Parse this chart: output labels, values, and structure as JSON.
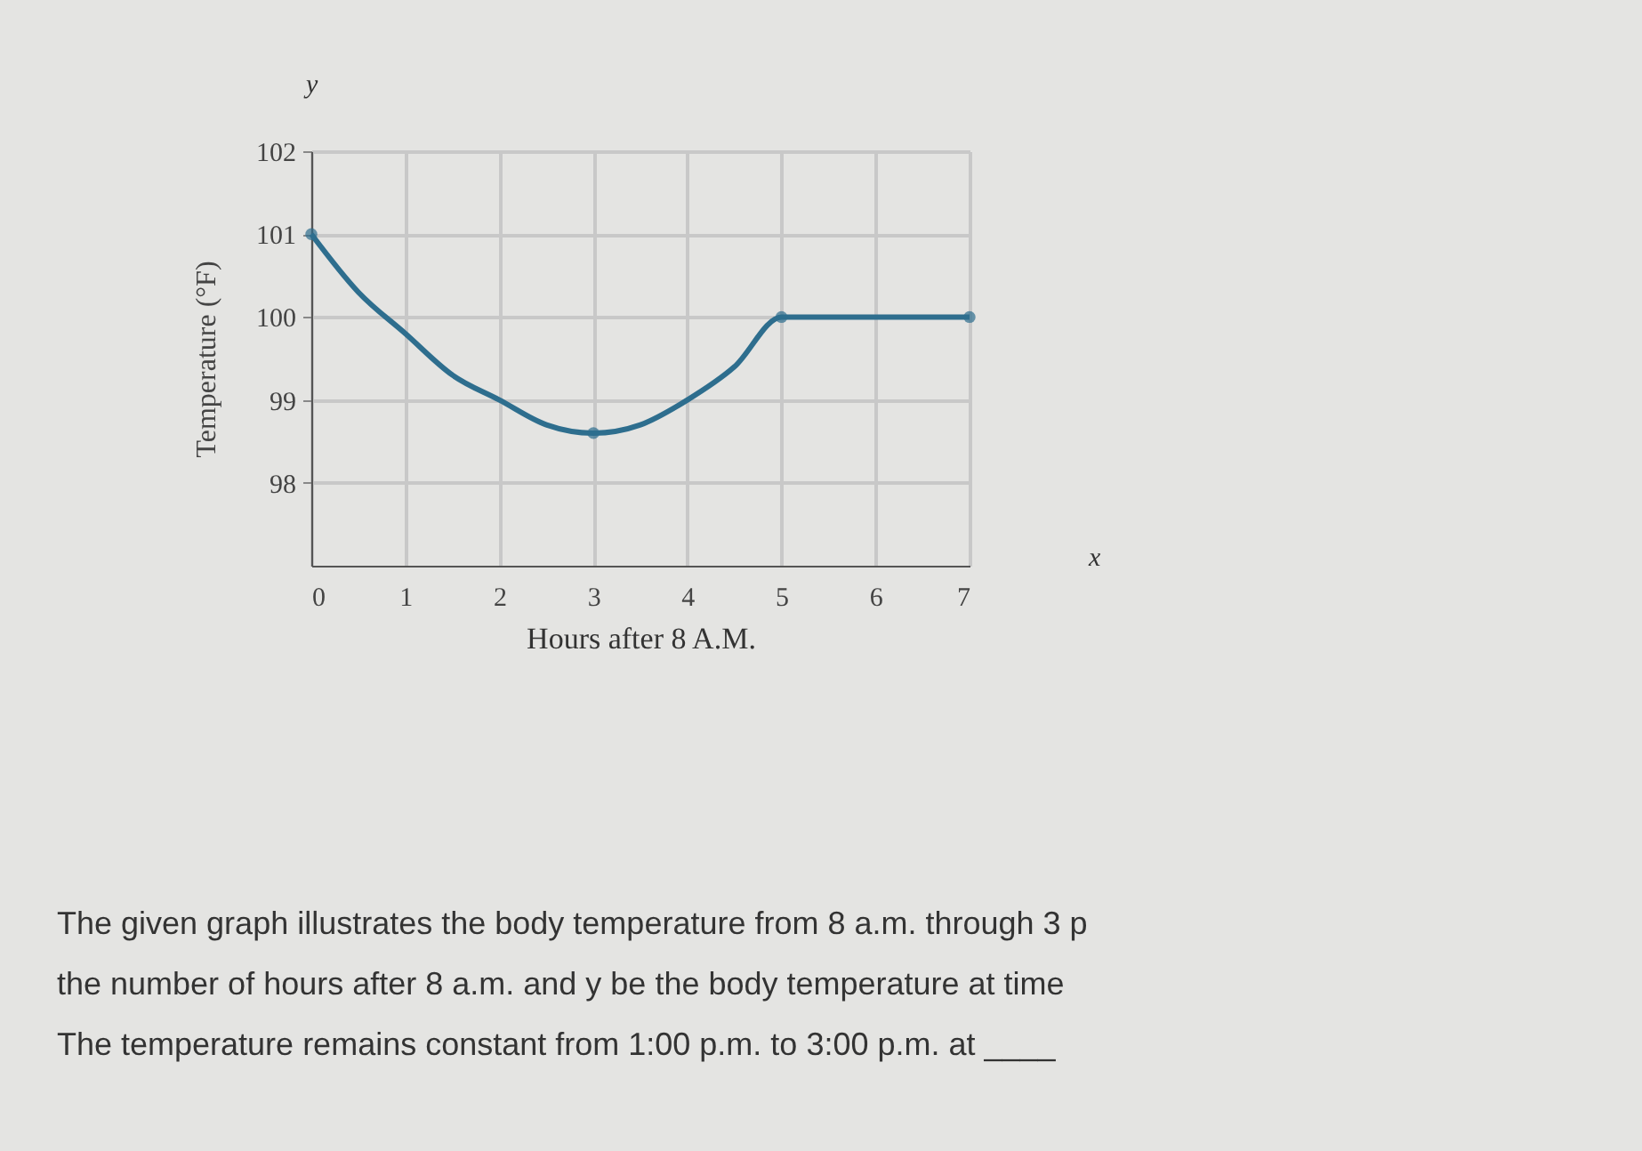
{
  "chart_data": {
    "type": "line",
    "xlabel": "Hours after 8 A.M.",
    "ylabel": "Temperature (°F)",
    "xlim": [
      0,
      7
    ],
    "xticks": [
      0,
      1,
      2,
      3,
      4,
      5,
      6,
      7
    ],
    "ylim": [
      97,
      102
    ],
    "yticks": [
      98,
      99,
      100,
      101,
      102
    ],
    "grid": true,
    "series": [
      {
        "color": "#2e6e8e",
        "x": [
          0,
          0.5,
          1,
          1.5,
          2,
          2.5,
          3,
          3.5,
          4,
          4.5,
          5,
          6,
          7
        ],
        "values": [
          101,
          100.3,
          99.8,
          99.3,
          99,
          98.7,
          98.6,
          98.7,
          99,
          99.4,
          100,
          100,
          100
        ]
      },
      {
        "type": "scatter",
        "marker": "circle",
        "color": "#2e6e8e",
        "x": [
          0,
          3,
          5,
          7
        ],
        "values": [
          101,
          98.6,
          100,
          100
        ]
      }
    ],
    "annotations": [
      "y",
      "x",
      "The given graph illustrates the body temperature from 8 a.m. through 3 p",
      "the number of hours after 8 a.m. and y be the body temperature at time",
      "The temperature remains constant from 1:00 p.m. to 3:00 p.m. at ____"
    ]
  }
}
